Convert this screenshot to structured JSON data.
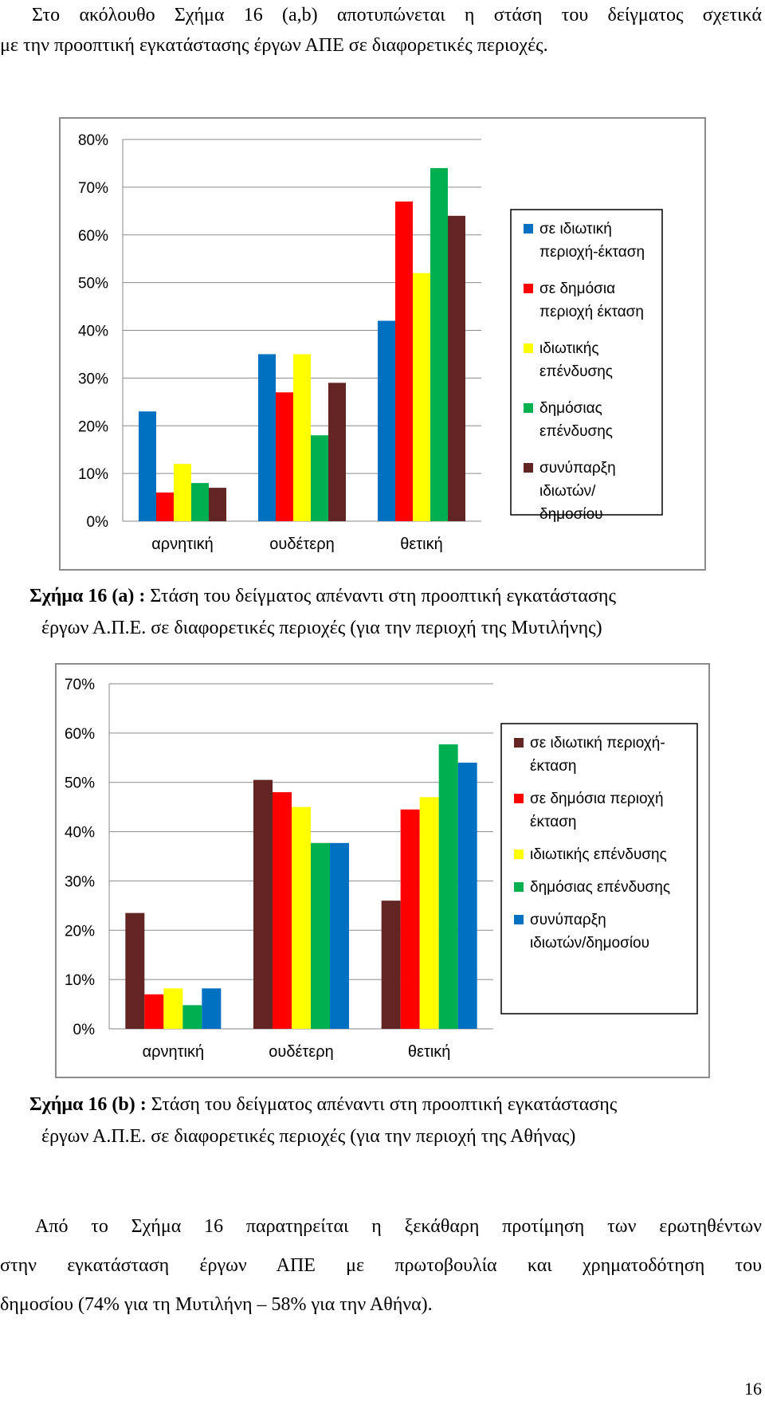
{
  "intro": {
    "line1": "Στο ακόλουθο Σχήμα 16 (a,b) αποτυπώνεται η στάση του δείγματος σχετικά",
    "line2": "με την προοπτική εγκατάστασης έργων ΑΠΕ σε διαφορετικές περιοχές."
  },
  "captions": {
    "a": {
      "label": "Σχήμα 16 (a) :",
      "line1": " Στάση του δείγματος απέναντι στη προοπτική εγκατάστασης",
      "line2": "έργων Α.Π.Ε. σε διαφορετικές περιοχές (για την περιοχή της Μυτιλήνης)"
    },
    "b": {
      "label": "Σχήμα 16 (b) :",
      "line1": " Στάση του δείγματος απέναντι στη προοπτική εγκατάστασης",
      "line2": "έργων Α.Π.Ε. σε διαφορετικές περιοχές (για την περιοχή της Αθήνας)"
    }
  },
  "conclusion": {
    "line1": "Από το Σχήμα 16 παρατηρείται η ξεκάθαρη προτίμηση των ερωτηθέντων",
    "line2": "στην εγκατάσταση έργων ΑΠΕ με πρωτοβουλία και χρηματοδότηση του",
    "line3": "δημοσίου (74% για τη Μυτιλήνη – 58% για την Αθήνα)."
  },
  "page_number": "16",
  "chart_data": [
    {
      "type": "bar",
      "categories": [
        "αρνητική",
        "ουδέτερη",
        "θετική"
      ],
      "ylim": [
        0,
        80
      ],
      "yticks": [
        "0%",
        "10%",
        "20%",
        "30%",
        "40%",
        "50%",
        "60%",
        "70%",
        "80%"
      ],
      "legend_position": "right",
      "series": [
        {
          "name": "σε ιδιωτική περιοχή-έκταση",
          "legend_lines": [
            "σε ιδιωτική",
            "περιοχή-έκταση"
          ],
          "color": "#0070c0",
          "values": [
            23,
            35,
            42
          ]
        },
        {
          "name": "σε δημόσια περιοχή έκταση",
          "legend_lines": [
            "σε δημόσια",
            "περιοχή έκταση"
          ],
          "color": "#ff0000",
          "values": [
            6,
            27,
            67
          ]
        },
        {
          "name": "ιδιωτικής επένδυσης",
          "legend_lines": [
            "ιδιωτικής",
            "επένδυσης"
          ],
          "color": "#ffff00",
          "values": [
            12,
            35,
            52
          ]
        },
        {
          "name": "δημόσιας επένδυσης",
          "legend_lines": [
            "δημόσιας",
            "επένδυσης"
          ],
          "color": "#00b050",
          "values": [
            8,
            18,
            74
          ]
        },
        {
          "name": "συνύπαρξη ιδιωτών/ δημοσίου",
          "legend_lines": [
            "συνύπαρξη",
            "ιδιωτών/",
            "δημοσίου"
          ],
          "color": "#632523",
          "values": [
            7,
            29,
            64
          ]
        }
      ]
    },
    {
      "type": "bar",
      "categories": [
        "αρνητική",
        "ουδέτερη",
        "θετική"
      ],
      "ylim": [
        0,
        70
      ],
      "yticks": [
        "0%",
        "10%",
        "20%",
        "30%",
        "40%",
        "50%",
        "60%",
        "70%"
      ],
      "legend_position": "right",
      "series": [
        {
          "name": "σε ιδιωτική περιοχή-έκταση",
          "legend_lines": [
            "σε ιδιωτική περιοχή-",
            "έκταση"
          ],
          "color": "#632523",
          "values": [
            23.5,
            50.5,
            26
          ]
        },
        {
          "name": "σε δημόσια περιοχή έκταση",
          "legend_lines": [
            "σε δημόσια περιοχή",
            "έκταση"
          ],
          "color": "#ff0000",
          "values": [
            7,
            48,
            44.5
          ]
        },
        {
          "name": "ιδιωτικής επένδυσης",
          "legend_lines": [
            "ιδιωτικής επένδυσης"
          ],
          "color": "#ffff00",
          "values": [
            8.2,
            45,
            47
          ]
        },
        {
          "name": "δημόσιας επένδυσης",
          "legend_lines": [
            "δημόσιας επένδυσης"
          ],
          "color": "#00b050",
          "values": [
            4.8,
            37.7,
            57.7
          ]
        },
        {
          "name": "συνύπαρξη ιδιωτών/δημοσίου",
          "legend_lines": [
            "συνύπαρξη",
            "ιδιωτών/δημοσίου"
          ],
          "color": "#0070c0",
          "values": [
            8.2,
            37.7,
            54
          ]
        }
      ]
    }
  ]
}
